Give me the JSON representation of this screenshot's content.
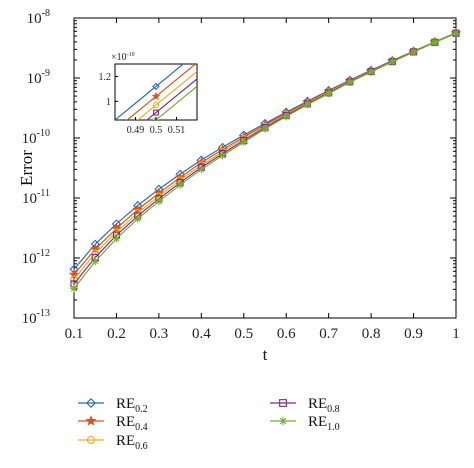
{
  "chart_data": {
    "type": "line",
    "xlabel": "t",
    "ylabel": "Error",
    "xlim": [
      0.1,
      1.0
    ],
    "ylim": [
      1e-13,
      1e-08
    ],
    "yscale": "log",
    "grid": false,
    "x_ticks": [
      "0.1",
      "0.2",
      "0.3",
      "0.4",
      "0.5",
      "0.6",
      "0.7",
      "0.8",
      "0.9",
      "1"
    ],
    "y_ticks": [
      {
        "value": 1e-13,
        "base": "10",
        "exp": "-13"
      },
      {
        "value": 1e-12,
        "base": "10",
        "exp": "-12"
      },
      {
        "value": 1e-11,
        "base": "10",
        "exp": "-11"
      },
      {
        "value": 1e-10,
        "base": "10",
        "exp": "-10"
      },
      {
        "value": 1e-09,
        "base": "10",
        "exp": "-9"
      },
      {
        "value": 1e-08,
        "base": "10",
        "exp": "-8"
      }
    ],
    "x": [
      0.1,
      0.15,
      0.2,
      0.25,
      0.3,
      0.35,
      0.4,
      0.45,
      0.5,
      0.55,
      0.6,
      0.65,
      0.7,
      0.75,
      0.8,
      0.85,
      0.9,
      0.95,
      1.0
    ],
    "series": [
      {
        "name": "RE",
        "sub": "0.2",
        "color": "#2b6cb0",
        "marker": "diamond",
        "values": [
          6.5e-13,
          1.7e-12,
          3.7e-12,
          7.5e-12,
          1.4e-11,
          2.5e-11,
          4.3e-11,
          7e-11,
          1.12e-10,
          1.75e-10,
          2.7e-10,
          4.1e-10,
          6.2e-10,
          9.2e-10,
          1.35e-09,
          1.95e-09,
          2.8e-09,
          4e-09,
          5.7e-09
        ]
      },
      {
        "name": "RE",
        "sub": "0.4",
        "color": "#d9541e",
        "marker": "star",
        "values": [
          5.3e-13,
          1.4e-12,
          3.1e-12,
          6.4e-12,
          1.2e-11,
          2.2e-11,
          3.9e-11,
          6.4e-11,
          1.04e-10,
          1.65e-10,
          2.58e-10,
          3.95e-10,
          6e-10,
          9e-10,
          1.32e-09,
          1.92e-09,
          2.77e-09,
          3.97e-09,
          5.65e-09
        ]
      },
      {
        "name": "RE",
        "sub": "0.6",
        "color": "#e8b124",
        "marker": "circle",
        "values": [
          4.4e-13,
          1.2e-12,
          2.7e-12,
          5.6e-12,
          1.07e-11,
          1.98e-11,
          3.55e-11,
          5.9e-11,
          9.7e-11,
          1.56e-10,
          2.46e-10,
          3.8e-10,
          5.8e-10,
          8.8e-10,
          1.3e-09,
          1.9e-09,
          2.75e-09,
          3.95e-09,
          5.6e-09
        ]
      },
      {
        "name": "RE",
        "sub": "0.8",
        "color": "#7b2d8e",
        "marker": "square",
        "values": [
          3.7e-13,
          1.02e-12,
          2.4e-12,
          5e-12,
          9.7e-12,
          1.8e-11,
          3.25e-11,
          5.5e-11,
          9.1e-11,
          1.49e-10,
          2.37e-10,
          3.7e-10,
          5.65e-10,
          8.65e-10,
          1.28e-09,
          1.88e-09,
          2.73e-09,
          3.93e-09,
          5.58e-09
        ]
      },
      {
        "name": "RE",
        "sub": "1.0",
        "color": "#77ac30",
        "marker": "asterisk",
        "values": [
          3.1e-13,
          8.8e-13,
          2.1e-12,
          4.5e-12,
          8.8e-12,
          1.65e-11,
          3e-11,
          5.1e-11,
          8.5e-11,
          1.42e-10,
          2.28e-10,
          3.6e-10,
          5.5e-10,
          8.5e-10,
          1.26e-09,
          1.86e-09,
          2.71e-09,
          3.91e-09,
          5.56e-09
        ]
      }
    ],
    "inset": {
      "multiplier_base": "×10",
      "multiplier_exp": "-10",
      "xlim": [
        0.48,
        0.52
      ],
      "ylim": [
        0.85,
        1.3
      ],
      "x_ticks": [
        "0.49",
        "0.5",
        "0.51"
      ],
      "y_ticks": [
        "1",
        "1.2"
      ],
      "slope": 13.5,
      "values_at_0_5": [
        1.12,
        1.04,
        0.97,
        0.91,
        0.85
      ]
    },
    "legend_placement": "below"
  }
}
